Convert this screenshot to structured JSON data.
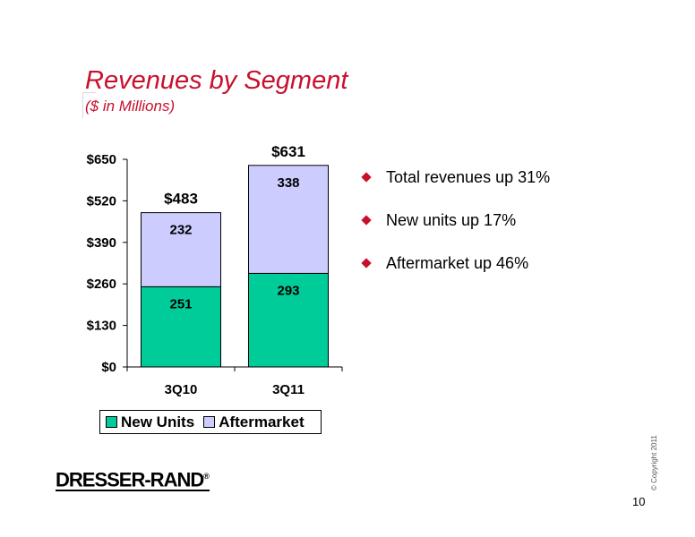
{
  "slide": {
    "title": "Revenues by Segment",
    "subtitle": "($ in Millions)",
    "bullets": [
      "Total revenues up 31%",
      "New units up 17%",
      "Aftermarket up 46%"
    ],
    "logo_text": "DRESSER-RAND",
    "logo_mark": "®",
    "copyright": "© Copyright 2011",
    "page_number": "10"
  },
  "chart_data": {
    "type": "bar",
    "stacked": true,
    "categories": [
      "3Q10",
      "3Q11"
    ],
    "series": [
      {
        "name": "New Units",
        "values": [
          251,
          293
        ],
        "color": "#00cc99"
      },
      {
        "name": "Aftermarket",
        "values": [
          232,
          338
        ],
        "color": "#ccccff"
      }
    ],
    "totals": [
      "$483",
      "$631"
    ],
    "yticks": [
      "$0",
      "$130",
      "$260",
      "$390",
      "$520",
      "$650"
    ],
    "ylim": [
      0,
      650
    ],
    "grid": false,
    "legend_position": "bottom-left",
    "title": "",
    "xlabel": "",
    "ylabel": ""
  }
}
